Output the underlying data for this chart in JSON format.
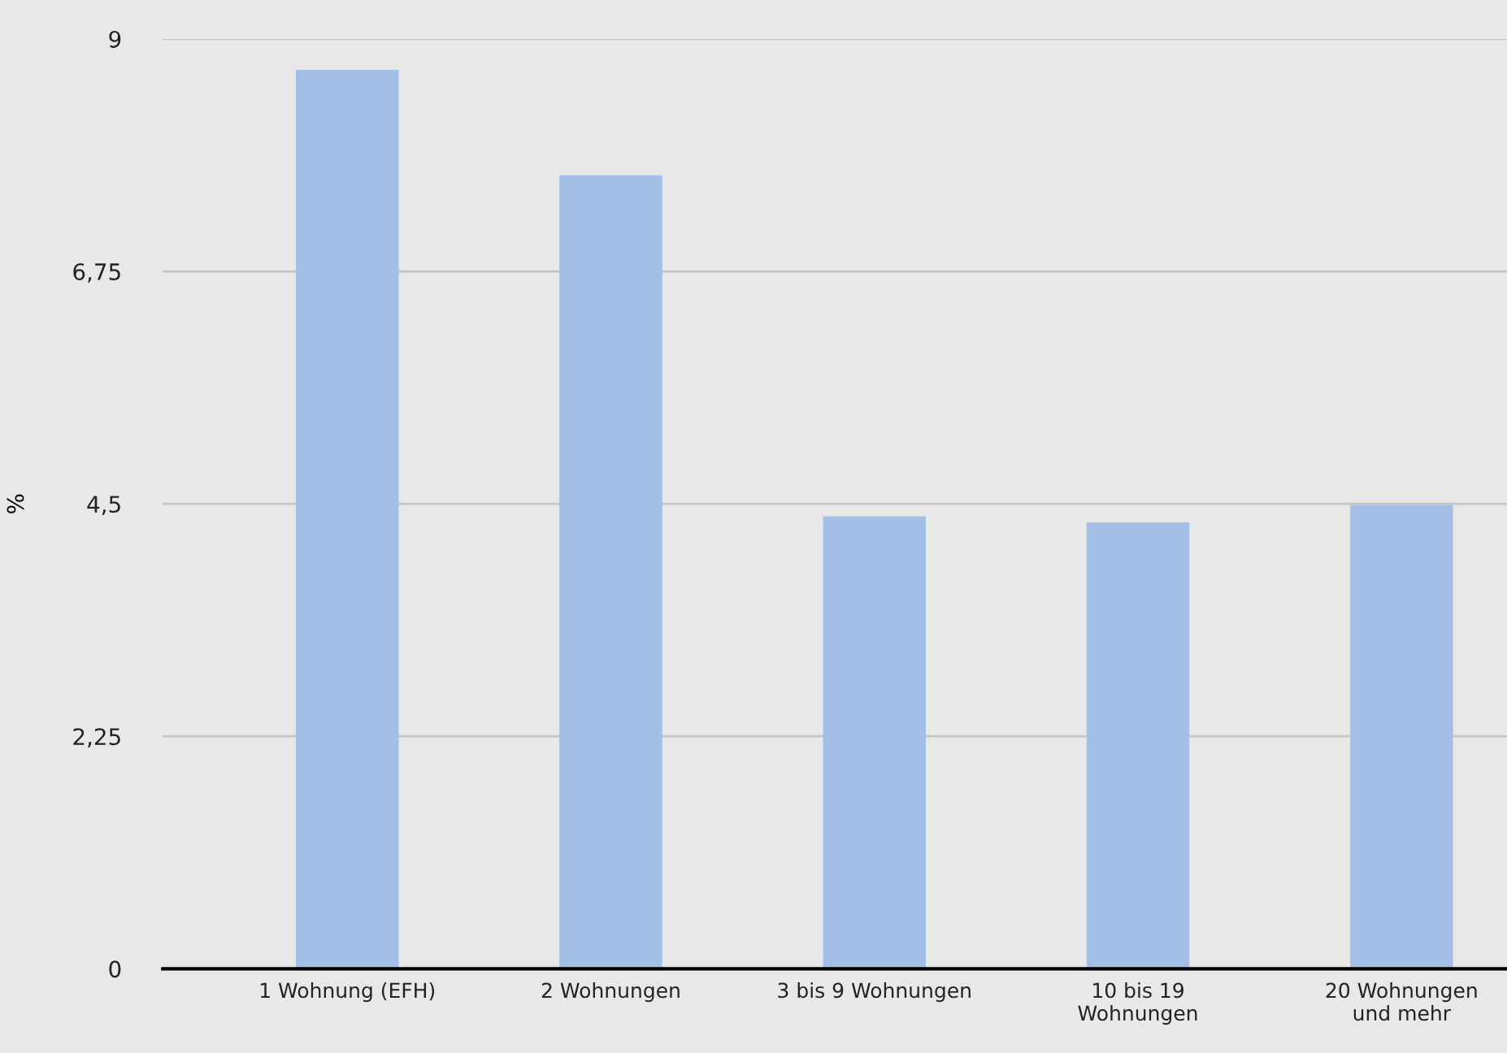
{
  "chart_data": {
    "type": "bar",
    "ylabel": "%",
    "categories": [
      "1 Wohnung (EFH)",
      "2 Wohnungen",
      "3 bis 9 Wohnungen",
      "10 bis 19\nWohnungen",
      "20 Wohnungen\nund mehr"
    ],
    "values": [
      8.7,
      7.68,
      4.38,
      4.32,
      4.49
    ],
    "color": "#a3bfe5",
    "ylim": [
      0,
      9
    ],
    "yticks": [
      0,
      {
        "value": 2.25,
        "label": "2,25"
      },
      {
        "value": 4.5,
        "label": "4,5"
      },
      {
        "value": 6.75,
        "label": "6,75"
      },
      9
    ],
    "grid": "y"
  }
}
